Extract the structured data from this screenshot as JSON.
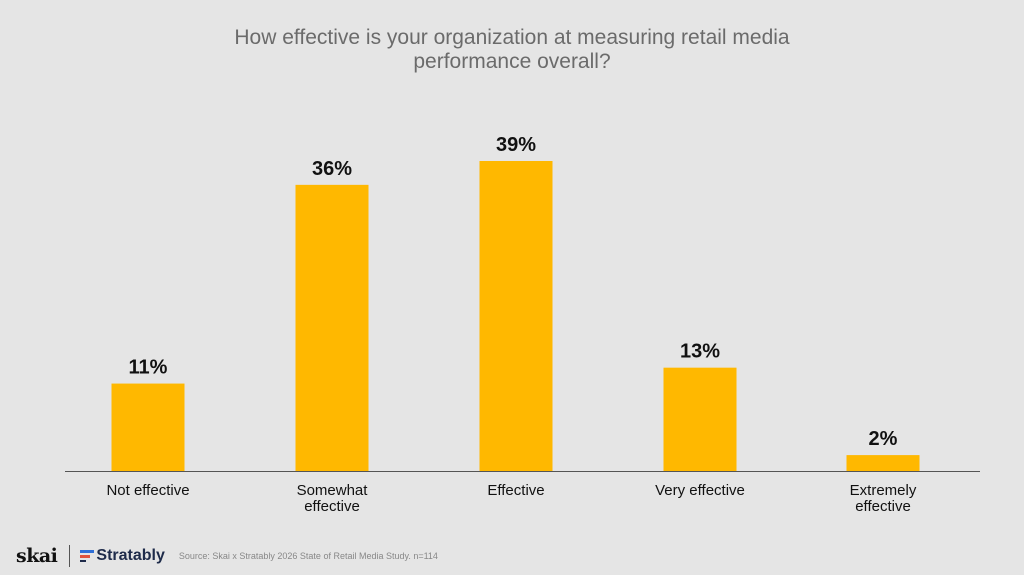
{
  "chart_data": {
    "type": "bar",
    "title": "How effective is your organization at measuring retail media performance overall?",
    "title_lines": [
      "How effective is your organization at measuring retail media",
      "performance overall?"
    ],
    "categories": [
      "Not effective",
      "Somewhat effective",
      "Effective",
      "Very effective",
      "Extremely effective"
    ],
    "category_lines": [
      [
        "Not effective"
      ],
      [
        "Somewhat",
        "effective"
      ],
      [
        "Effective"
      ],
      [
        "Very effective"
      ],
      [
        "Extremely",
        "effective"
      ]
    ],
    "values": [
      11,
      36,
      39,
      13,
      2
    ],
    "value_labels": [
      "11%",
      "36%",
      "39%",
      "13%",
      "2%"
    ],
    "ylim": [
      0,
      39
    ],
    "grid": false,
    "bar_color": "#ffb800",
    "axis_color": "#555555"
  },
  "footer": {
    "logo_left": "skai",
    "logo_right": "Stratably",
    "source": "Source: Skai x Stratably 2026 State of Retail Media Study. n=114"
  },
  "colors": {
    "background": "#e5e5e5",
    "title": "#6b6b6b",
    "text": "#111111"
  }
}
